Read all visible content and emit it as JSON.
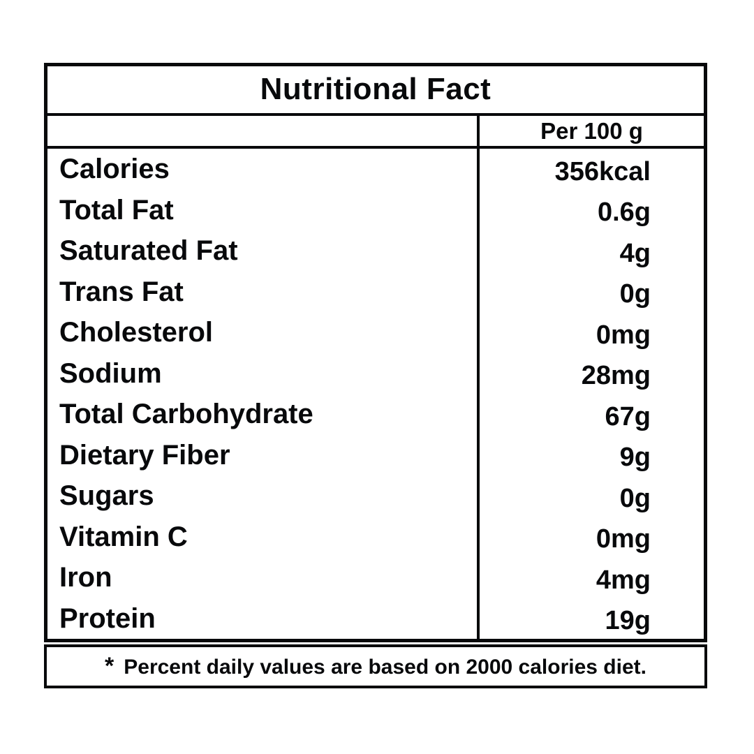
{
  "table": {
    "title": "Nutritional Fact",
    "column_header": "Per 100 g",
    "rows": [
      {
        "label": "Calories",
        "value": "356kcal"
      },
      {
        "label": "Total Fat",
        "value": "0.6g"
      },
      {
        "label": "Saturated Fat",
        "value": "4g"
      },
      {
        "label": "Trans Fat",
        "value": "0g"
      },
      {
        "label": "Cholesterol",
        "value": "0mg"
      },
      {
        "label": "Sodium",
        "value": "28mg"
      },
      {
        "label": "Total Carbohydrate",
        "value": "67g"
      },
      {
        "label": "Dietary Fiber",
        "value": "9g"
      },
      {
        "label": "Sugars",
        "value": "0g"
      },
      {
        "label": "Vitamin C",
        "value": "0mg"
      },
      {
        "label": "Iron",
        "value": "4mg"
      },
      {
        "label": "Protein",
        "value": "19g"
      }
    ],
    "footnote_marker": "*",
    "footnote": "Percent daily values are based on 2000 calories diet."
  },
  "colors": {
    "ink": "#08090b",
    "background": "#ffffff"
  }
}
